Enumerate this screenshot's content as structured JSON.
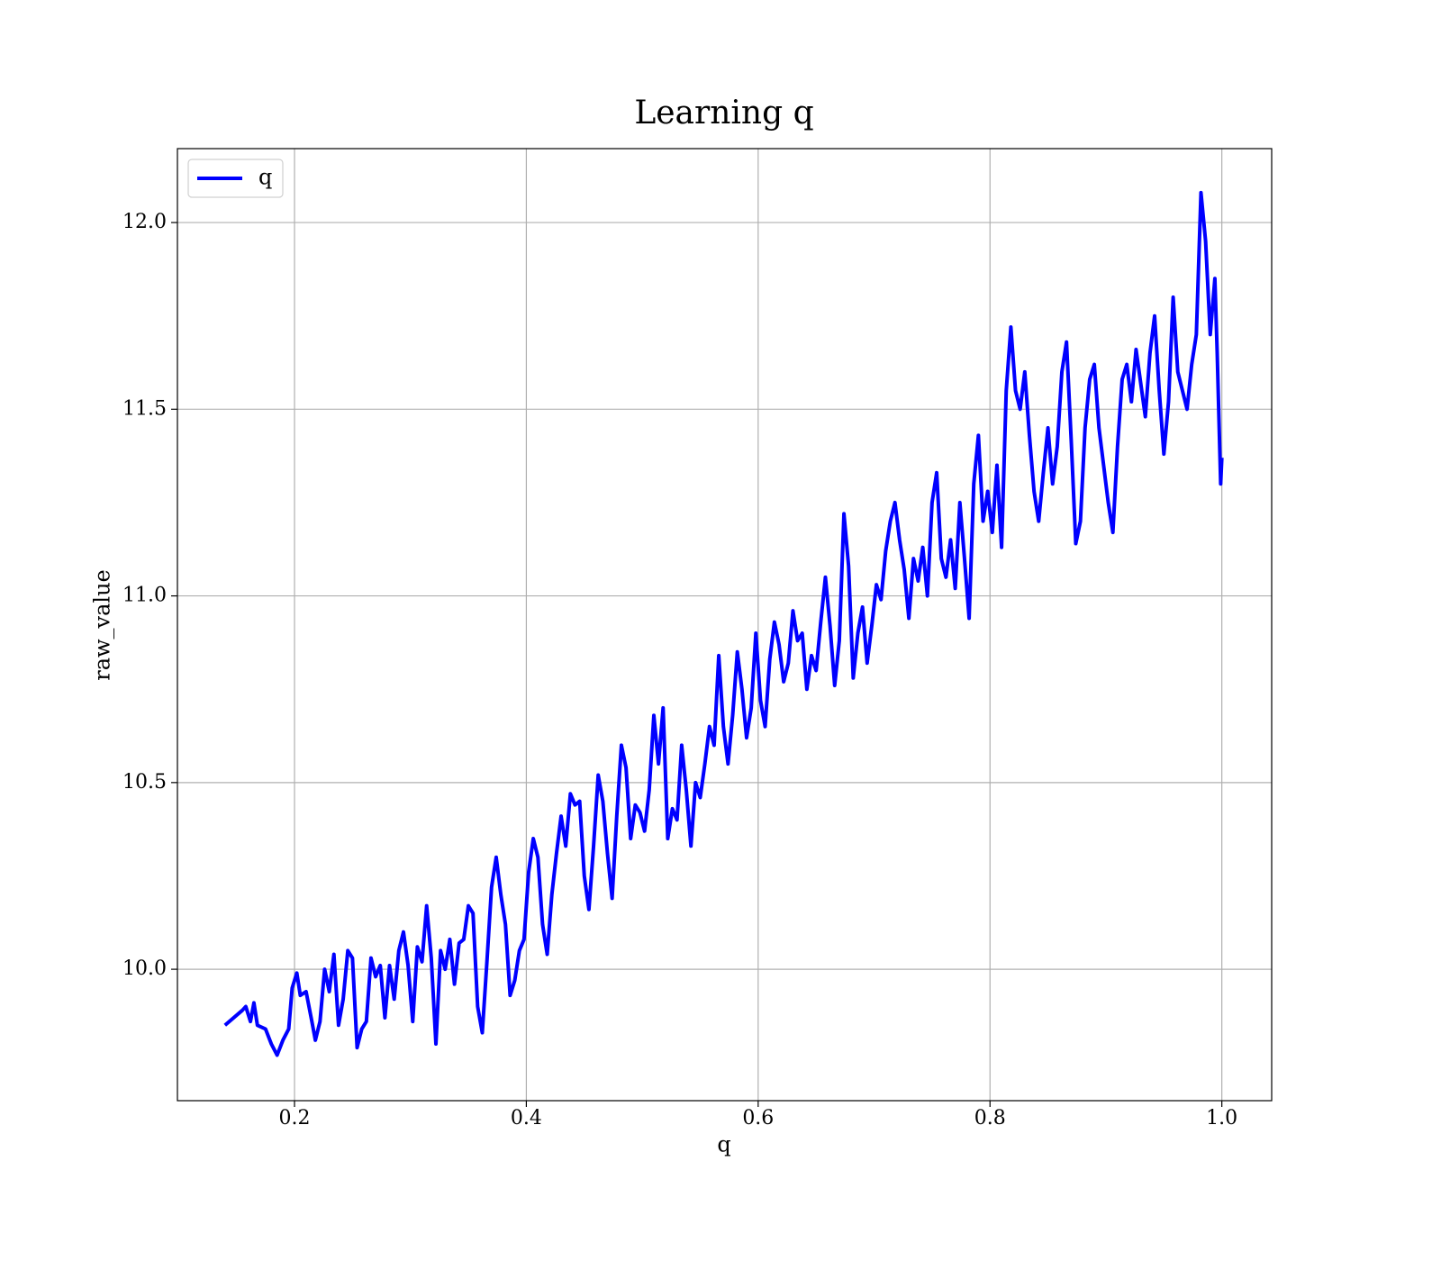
{
  "chart_data": {
    "type": "line",
    "title": "Learning q",
    "xlabel": "q",
    "ylabel": "raw_value",
    "xlim": [
      0.099,
      1.043
    ],
    "ylim": [
      9.648,
      12.198
    ],
    "xticks": [
      0.2,
      0.4,
      0.6,
      0.8,
      {
        "value": 1,
        "label": "1.0"
      }
    ],
    "yticks": [
      {
        "value": 10,
        "label": "10.0"
      },
      10.5,
      {
        "value": 11,
        "label": "11.0"
      },
      11.5,
      {
        "value": 12,
        "label": "12.0"
      }
    ],
    "grid": true,
    "legend": "upper left",
    "x": [
      0.14,
      0.155,
      0.158,
      0.162,
      0.165,
      0.168,
      0.175,
      0.18,
      0.185,
      0.19,
      0.195,
      0.198,
      0.202,
      0.205,
      0.21,
      0.215,
      0.218,
      0.222,
      0.226,
      0.23,
      0.234,
      0.238,
      0.242,
      0.246,
      0.25,
      0.254,
      0.258,
      0.262,
      0.266,
      0.27,
      0.274,
      0.278,
      0.282,
      0.286,
      0.29,
      0.294,
      0.298,
      0.302,
      0.306,
      0.31,
      0.314,
      0.318,
      0.322,
      0.326,
      0.33,
      0.334,
      0.338,
      0.342,
      0.346,
      0.35,
      0.354,
      0.358,
      0.362,
      0.366,
      0.37,
      0.374,
      0.378,
      0.382,
      0.386,
      0.39,
      0.394,
      0.398,
      0.402,
      0.406,
      0.41,
      0.414,
      0.418,
      0.422,
      0.426,
      0.43,
      0.434,
      0.438,
      0.442,
      0.446,
      0.45,
      0.454,
      0.458,
      0.462,
      0.466,
      0.47,
      0.474,
      0.478,
      0.482,
      0.486,
      0.49,
      0.494,
      0.498,
      0.502,
      0.506,
      0.51,
      0.514,
      0.518,
      0.522,
      0.526,
      0.53,
      0.534,
      0.538,
      0.542,
      0.546,
      0.55,
      0.554,
      0.558,
      0.562,
      0.566,
      0.57,
      0.574,
      0.578,
      0.582,
      0.586,
      0.59,
      0.594,
      0.598,
      0.602,
      0.606,
      0.61,
      0.614,
      0.618,
      0.622,
      0.626,
      0.63,
      0.634,
      0.638,
      0.642,
      0.646,
      0.65,
      0.654,
      0.658,
      0.662,
      0.666,
      0.67,
      0.674,
      0.678,
      0.682,
      0.686,
      0.69,
      0.694,
      0.698,
      0.702,
      0.706,
      0.71,
      0.714,
      0.718,
      0.722,
      0.726,
      0.73,
      0.734,
      0.738,
      0.742,
      0.746,
      0.75,
      0.754,
      0.758,
      0.762,
      0.766,
      0.77,
      0.774,
      0.778,
      0.782,
      0.786,
      0.79,
      0.794,
      0.798,
      0.802,
      0.806,
      0.81,
      0.814,
      0.818,
      0.822,
      0.826,
      0.83,
      0.834,
      0.838,
      0.842,
      0.846,
      0.85,
      0.854,
      0.858,
      0.862,
      0.866,
      0.87,
      0.874,
      0.878,
      0.882,
      0.886,
      0.89,
      0.894,
      0.898,
      0.902,
      0.906,
      0.91,
      0.914,
      0.918,
      0.922,
      0.926,
      0.93,
      0.934,
      0.938,
      0.942,
      0.946,
      0.95,
      0.954,
      0.958,
      0.962,
      0.966,
      0.97,
      0.974,
      0.978,
      0.982,
      0.986,
      0.99,
      0.994,
      0.996,
      0.999,
      1.0
    ],
    "series": [
      {
        "name": "q",
        "color": "#0000ff",
        "values": [
          9.85,
          9.89,
          9.9,
          9.86,
          9.91,
          9.85,
          9.84,
          9.8,
          9.77,
          9.81,
          9.84,
          9.95,
          9.99,
          9.93,
          9.94,
          9.86,
          9.81,
          9.86,
          10.0,
          9.94,
          10.04,
          9.85,
          9.92,
          10.05,
          10.03,
          9.79,
          9.84,
          9.86,
          10.03,
          9.98,
          10.01,
          9.87,
          10.01,
          9.92,
          10.05,
          10.1,
          10.01,
          9.86,
          10.06,
          10.02,
          10.17,
          10.03,
          9.8,
          10.05,
          10.0,
          10.08,
          9.96,
          10.07,
          10.08,
          10.17,
          10.15,
          9.9,
          9.83,
          10.02,
          10.22,
          10.3,
          10.2,
          10.12,
          9.93,
          9.97,
          10.05,
          10.08,
          10.26,
          10.35,
          10.3,
          10.12,
          10.04,
          10.2,
          10.31,
          10.41,
          10.33,
          10.47,
          10.44,
          10.45,
          10.25,
          10.16,
          10.33,
          10.52,
          10.45,
          10.31,
          10.19,
          10.41,
          10.6,
          10.54,
          10.35,
          10.44,
          10.42,
          10.37,
          10.48,
          10.68,
          10.55,
          10.7,
          10.35,
          10.43,
          10.4,
          10.6,
          10.48,
          10.33,
          10.5,
          10.46,
          10.55,
          10.65,
          10.6,
          10.84,
          10.65,
          10.55,
          10.68,
          10.85,
          10.75,
          10.62,
          10.7,
          10.9,
          10.72,
          10.65,
          10.83,
          10.93,
          10.87,
          10.77,
          10.82,
          10.96,
          10.88,
          10.9,
          10.75,
          10.84,
          10.8,
          10.93,
          11.05,
          10.92,
          10.76,
          10.88,
          11.22,
          11.08,
          10.78,
          10.9,
          10.97,
          10.82,
          10.92,
          11.03,
          10.99,
          11.12,
          11.2,
          11.25,
          11.15,
          11.07,
          10.94,
          11.1,
          11.04,
          11.13,
          11.0,
          11.25,
          11.33,
          11.1,
          11.05,
          11.15,
          11.02,
          11.25,
          11.1,
          10.94,
          11.3,
          11.43,
          11.2,
          11.28,
          11.17,
          11.35,
          11.13,
          11.55,
          11.72,
          11.55,
          11.5,
          11.6,
          11.43,
          11.28,
          11.2,
          11.33,
          11.45,
          11.3,
          11.4,
          11.6,
          11.68,
          11.42,
          11.14,
          11.2,
          11.45,
          11.58,
          11.62,
          11.45,
          11.35,
          11.25,
          11.17,
          11.4,
          11.58,
          11.62,
          11.52,
          11.66,
          11.57,
          11.48,
          11.65,
          11.75,
          11.55,
          11.38,
          11.52,
          11.8,
          11.6,
          11.55,
          11.5,
          11.62,
          11.7,
          12.08,
          11.95,
          11.7,
          11.85,
          11.65,
          11.3,
          11.37
        ]
      }
    ]
  }
}
